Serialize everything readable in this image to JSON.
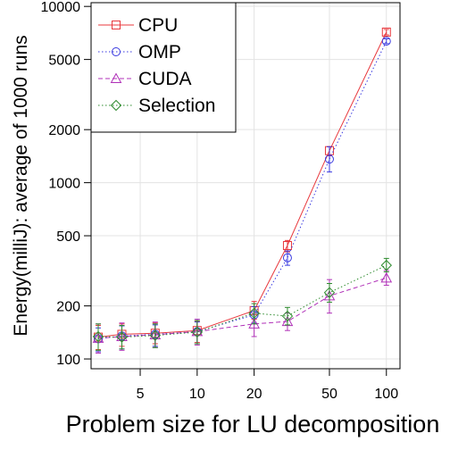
{
  "chart_data": {
    "type": "line",
    "title": "",
    "xlabel": "Problem size for LU decomposition",
    "ylabel": "Energy(milliJ): average of 1000 runs",
    "xscale": "log",
    "yscale": "log",
    "xlim": [
      2.75,
      118
    ],
    "ylim": [
      88,
      10500
    ],
    "xticks": [
      5,
      10,
      20,
      50,
      100
    ],
    "xtick_labels": [
      "5",
      "10",
      "20",
      "50",
      "100"
    ],
    "yticks": [
      100,
      200,
      500,
      1000,
      2000,
      5000,
      10000
    ],
    "ytick_labels": [
      "100",
      "200",
      "500",
      "1000",
      "2000",
      "5000",
      "10000"
    ],
    "grid": true,
    "legend_position": "top-left",
    "x": [
      3,
      4,
      6,
      10,
      20,
      30,
      50,
      100
    ],
    "series": [
      {
        "name": "CPU",
        "color": "#e8383d",
        "marker": "square",
        "line": "solid",
        "values": [
          133,
          138,
          140,
          145,
          188,
          440,
          1520,
          7150
        ],
        "err_lo": [
          113,
          118,
          122,
          124,
          168,
          405,
          1420,
          6900
        ],
        "err_hi": [
          155,
          158,
          160,
          164,
          212,
          470,
          1600,
          7400
        ]
      },
      {
        "name": "OMP",
        "color": "#3a3ae0",
        "marker": "circle",
        "line": "dotted",
        "values": [
          130,
          135,
          138,
          143,
          178,
          375,
          1360,
          6350
        ],
        "err_lo": [
          110,
          114,
          118,
          122,
          160,
          340,
          1150,
          6150
        ],
        "err_hi": [
          150,
          154,
          156,
          162,
          198,
          410,
          1600,
          6550
        ]
      },
      {
        "name": "CUDA",
        "color": "#b030b8",
        "marker": "triangle",
        "line": "dashed",
        "values": [
          131,
          134,
          137,
          143,
          158,
          163,
          228,
          288
        ],
        "err_lo": [
          108,
          112,
          116,
          120,
          134,
          145,
          182,
          262
        ],
        "err_hi": [
          158,
          160,
          162,
          168,
          182,
          182,
          282,
          318
        ]
      },
      {
        "name": "Selection",
        "color": "#2e8b2e",
        "marker": "diamond",
        "line": "dotted",
        "values": [
          134,
          133,
          136,
          142,
          182,
          175,
          238,
          340
        ],
        "err_lo": [
          112,
          114,
          116,
          122,
          158,
          156,
          210,
          312
        ],
        "err_hi": [
          158,
          155,
          158,
          165,
          206,
          196,
          268,
          372
        ]
      }
    ]
  }
}
